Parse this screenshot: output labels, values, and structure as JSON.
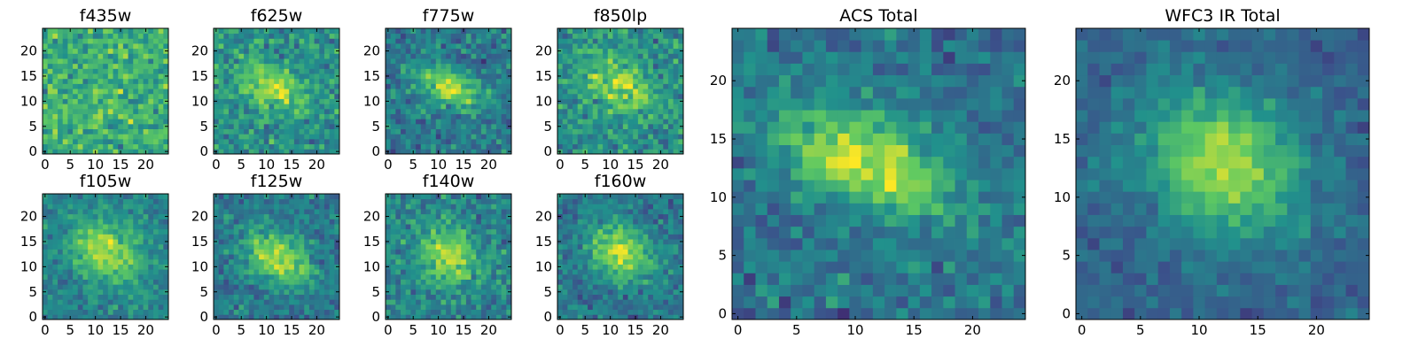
{
  "figure": {
    "colormap": "viridis",
    "colormap_stops": [
      "#440154",
      "#3b528b",
      "#21918c",
      "#5ec962",
      "#fde725"
    ]
  },
  "chart_data": [
    {
      "type": "heatmap",
      "title": "f435w",
      "grid_size": [
        25,
        25
      ],
      "xlim": [
        0,
        24
      ],
      "ylim": [
        0,
        24
      ],
      "xticks": [
        0,
        5,
        10,
        15,
        20
      ],
      "yticks": [
        0,
        5,
        10,
        15,
        20
      ],
      "tick_labels_x": [
        "0",
        "5",
        "10",
        "15",
        "20"
      ],
      "tick_labels_y": [
        "0",
        "5",
        "10",
        "15",
        "20"
      ],
      "source": {
        "center": [
          12,
          12
        ],
        "peak": 0.05,
        "sigma": [
          4,
          3
        ],
        "angle_deg": 0,
        "background": 0.62,
        "noise": 0.34,
        "seed": 11
      }
    },
    {
      "type": "heatmap",
      "title": "f625w",
      "grid_size": [
        25,
        25
      ],
      "xlim": [
        0,
        24
      ],
      "ylim": [
        0,
        24
      ],
      "xticks": [
        0,
        5,
        10,
        15,
        20
      ],
      "yticks": [
        0,
        5,
        10,
        15,
        20
      ],
      "tick_labels_x": [
        "0",
        "5",
        "10",
        "15",
        "20"
      ],
      "tick_labels_y": [
        "0",
        "5",
        "10",
        "15",
        "20"
      ],
      "source": {
        "center": [
          11,
          13
        ],
        "peak": 0.38,
        "sigma": [
          5,
          2.6
        ],
        "angle_deg": -25,
        "background": 0.5,
        "noise": 0.3,
        "seed": 23
      }
    },
    {
      "type": "heatmap",
      "title": "f775w",
      "grid_size": [
        25,
        25
      ],
      "xlim": [
        0,
        24
      ],
      "ylim": [
        0,
        24
      ],
      "xticks": [
        0,
        5,
        10,
        15,
        20
      ],
      "yticks": [
        0,
        5,
        10,
        15,
        20
      ],
      "tick_labels_x": [
        "0",
        "5",
        "10",
        "15",
        "20"
      ],
      "tick_labels_y": [
        "0",
        "5",
        "10",
        "15",
        "20"
      ],
      "source": {
        "center": [
          12,
          13
        ],
        "peak": 0.5,
        "sigma": [
          5,
          2.2
        ],
        "angle_deg": -25,
        "background": 0.4,
        "noise": 0.28,
        "seed": 37
      }
    },
    {
      "type": "heatmap",
      "title": "f850lp",
      "grid_size": [
        25,
        25
      ],
      "xlim": [
        0,
        24
      ],
      "ylim": [
        0,
        24
      ],
      "xticks": [
        0,
        5,
        10,
        15,
        20
      ],
      "yticks": [
        0,
        5,
        10,
        15,
        20
      ],
      "tick_labels_x": [
        "0",
        "5",
        "10",
        "15",
        "20"
      ],
      "tick_labels_y": [
        "0",
        "5",
        "10",
        "15",
        "20"
      ],
      "source": {
        "center": [
          12,
          13
        ],
        "peak": 0.35,
        "sigma": [
          5,
          3
        ],
        "angle_deg": -25,
        "background": 0.5,
        "noise": 0.3,
        "seed": 41
      }
    },
    {
      "type": "heatmap",
      "title": "f105w",
      "grid_size": [
        25,
        25
      ],
      "xlim": [
        0,
        24
      ],
      "ylim": [
        0,
        24
      ],
      "xticks": [
        0,
        5,
        10,
        15,
        20
      ],
      "yticks": [
        0,
        5,
        10,
        15,
        20
      ],
      "tick_labels_x": [
        "0",
        "5",
        "10",
        "15",
        "20"
      ],
      "tick_labels_y": [
        "0",
        "5",
        "10",
        "15",
        "20"
      ],
      "source": {
        "center": [
          12,
          13
        ],
        "peak": 0.45,
        "sigma": [
          5,
          3.5
        ],
        "angle_deg": -30,
        "background": 0.45,
        "noise": 0.22,
        "seed": 53
      }
    },
    {
      "type": "heatmap",
      "title": "f125w",
      "grid_size": [
        25,
        25
      ],
      "xlim": [
        0,
        24
      ],
      "ylim": [
        0,
        24
      ],
      "xticks": [
        0,
        5,
        10,
        15,
        20
      ],
      "yticks": [
        0,
        5,
        10,
        15,
        20
      ],
      "tick_labels_x": [
        "0",
        "5",
        "10",
        "15",
        "20"
      ],
      "tick_labels_y": [
        "0",
        "5",
        "10",
        "15",
        "20"
      ],
      "source": {
        "center": [
          12,
          12
        ],
        "peak": 0.5,
        "sigma": [
          5,
          3.2
        ],
        "angle_deg": -30,
        "background": 0.4,
        "noise": 0.24,
        "seed": 67
      }
    },
    {
      "type": "heatmap",
      "title": "f140w",
      "grid_size": [
        25,
        25
      ],
      "xlim": [
        0,
        24
      ],
      "ylim": [
        0,
        24
      ],
      "xticks": [
        0,
        5,
        10,
        15,
        20
      ],
      "yticks": [
        0,
        5,
        10,
        15,
        20
      ],
      "tick_labels_x": [
        "0",
        "5",
        "10",
        "15",
        "20"
      ],
      "tick_labels_y": [
        "0",
        "5",
        "10",
        "15",
        "20"
      ],
      "source": {
        "center": [
          12,
          12
        ],
        "peak": 0.42,
        "sigma": [
          4,
          3.6
        ],
        "angle_deg": -40,
        "background": 0.45,
        "noise": 0.28,
        "seed": 79
      }
    },
    {
      "type": "heatmap",
      "title": "f160w",
      "grid_size": [
        25,
        25
      ],
      "xlim": [
        0,
        24
      ],
      "ylim": [
        0,
        24
      ],
      "xticks": [
        0,
        5,
        10,
        15,
        20
      ],
      "yticks": [
        0,
        5,
        10,
        15,
        20
      ],
      "tick_labels_x": [
        "0",
        "5",
        "10",
        "15",
        "20"
      ],
      "tick_labels_y": [
        "0",
        "5",
        "10",
        "15",
        "20"
      ],
      "source": {
        "center": [
          12,
          13
        ],
        "peak": 0.5,
        "sigma": [
          4.5,
          3.4
        ],
        "angle_deg": -35,
        "background": 0.4,
        "noise": 0.24,
        "seed": 83
      }
    },
    {
      "type": "heatmap",
      "title": "ACS Total",
      "grid_size": [
        25,
        25
      ],
      "xlim": [
        0,
        24
      ],
      "ylim": [
        0,
        24
      ],
      "xticks": [
        0,
        5,
        10,
        15,
        20
      ],
      "yticks": [
        0,
        5,
        10,
        15,
        20
      ],
      "tick_labels_x": [
        "0",
        "5",
        "10",
        "15",
        "20"
      ],
      "tick_labels_y": [
        "0",
        "5",
        "10",
        "15",
        "20"
      ],
      "source": {
        "center": [
          11,
          13
        ],
        "peak": 0.55,
        "sigma": [
          5.5,
          2.4
        ],
        "angle_deg": -22,
        "background": 0.38,
        "noise": 0.24,
        "seed": 97
      }
    },
    {
      "type": "heatmap",
      "title": "WFC3 IR Total",
      "grid_size": [
        25,
        25
      ],
      "xlim": [
        0,
        24
      ],
      "ylim": [
        0,
        24
      ],
      "xticks": [
        0,
        5,
        10,
        15,
        20
      ],
      "yticks": [
        0,
        5,
        10,
        15,
        20
      ],
      "tick_labels_x": [
        "0",
        "5",
        "10",
        "15",
        "20"
      ],
      "tick_labels_y": [
        "0",
        "5",
        "10",
        "15",
        "20"
      ],
      "source": {
        "center": [
          12,
          13
        ],
        "peak": 0.55,
        "sigma": [
          5,
          4
        ],
        "angle_deg": -35,
        "background": 0.32,
        "noise": 0.16,
        "seed": 101
      }
    }
  ]
}
